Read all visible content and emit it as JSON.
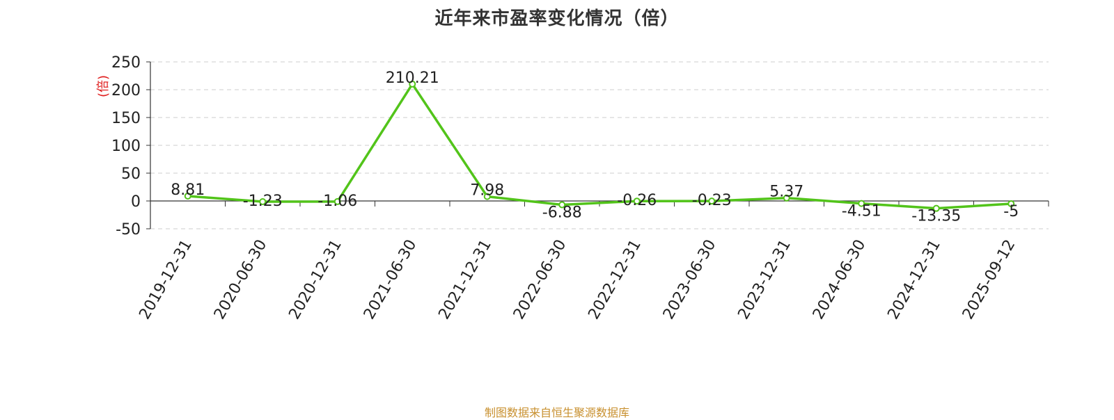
{
  "chart_data": {
    "type": "line",
    "title": "近年来市盈率变化情况（倍）",
    "ylabel": "(倍)",
    "xlabel": "",
    "categories": [
      "2019-12-31",
      "2020-06-30",
      "2020-12-31",
      "2021-06-30",
      "2021-12-31",
      "2022-06-30",
      "2022-12-31",
      "2023-06-30",
      "2023-12-31",
      "2024-06-30",
      "2024-12-31",
      "2025-09-12"
    ],
    "series": [
      {
        "values": [
          8.81,
          -1.23,
          -1.06,
          210.21,
          7.98,
          -6.88,
          -0.26,
          -0.23,
          5.37,
          -4.51,
          -13.35,
          -5
        ],
        "data_labels": [
          "8.81",
          "-1.23",
          "-1.06",
          "210.21",
          "7.98",
          "-6.88",
          "-0.26",
          "-0.23",
          "5.37",
          "-4.51",
          "-13.35",
          "-5"
        ],
        "color": "#52c41a"
      }
    ],
    "yticks": [
      "250",
      "200",
      "150",
      "100",
      "50",
      "0",
      "-50"
    ],
    "ytick_values": [
      250,
      200,
      150,
      100,
      50,
      0,
      -50
    ],
    "ylim": [
      -50,
      250
    ],
    "grid": true,
    "legend": "none"
  },
  "source_note": "制图数据来自恒生聚源数据库",
  "colors": {
    "line": "#52c41a",
    "ylabel": "#e02020",
    "grid": "#cccccc",
    "axis": "#333333",
    "source": "#c8902f"
  }
}
